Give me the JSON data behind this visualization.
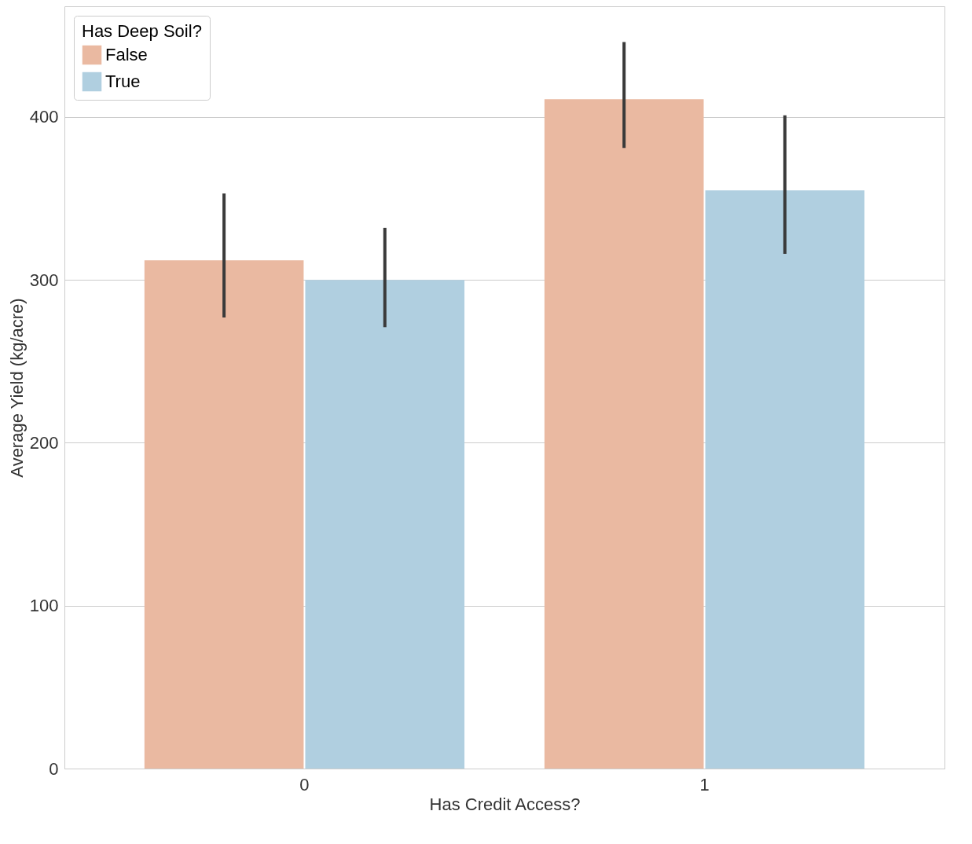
{
  "chart_data": {
    "type": "bar",
    "xlabel": "Has Credit Access?",
    "ylabel": "Average Yield (kg/acre)",
    "legend_title": "Has Deep Soil?",
    "categories": [
      "0",
      "1"
    ],
    "series": [
      {
        "name": "False",
        "color": "#eab9a1",
        "values": [
          312,
          411
        ],
        "errors": [
          [
            277,
            353
          ],
          [
            381,
            446
          ]
        ]
      },
      {
        "name": "True",
        "color": "#b0cfe0",
        "values": [
          300,
          355
        ],
        "errors": [
          [
            271,
            332
          ],
          [
            316,
            401
          ]
        ]
      }
    ],
    "ylim": [
      0,
      468
    ],
    "yticks": [
      0,
      100,
      200,
      300,
      400
    ],
    "grid": "y",
    "legend": "top left"
  }
}
